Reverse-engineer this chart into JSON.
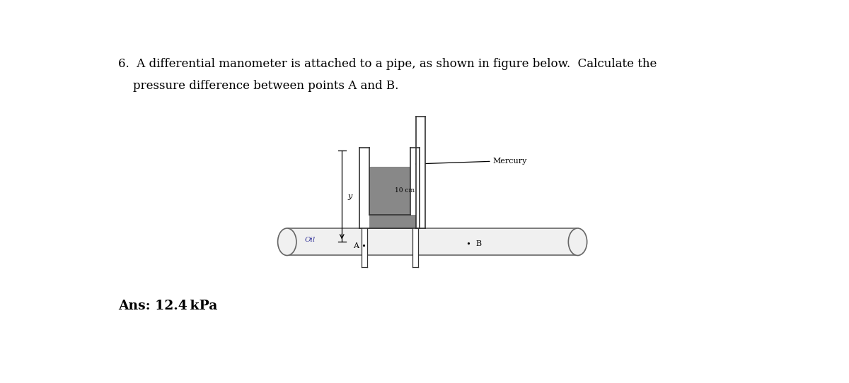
{
  "title_line1": "6.  A differential manometer is attached to a pipe, as shown in figure below.  Calculate the",
  "title_line2": "    pressure difference between points A and B.",
  "ans_text": "Ans: 12.4 kPa",
  "mercury_label": "Mercury",
  "oil_label": "Oil",
  "point_a_label": "A",
  "point_b_label": "B",
  "y_label": "y",
  "dim_label": "10 cm",
  "bg_color": "#ffffff",
  "pipe_outline": "#666666",
  "pipe_fill": "#f0f0f0",
  "manometer_outline": "#333333",
  "mercury_color": "#888888",
  "lw_main": 1.2,
  "lw_thin": 0.9
}
